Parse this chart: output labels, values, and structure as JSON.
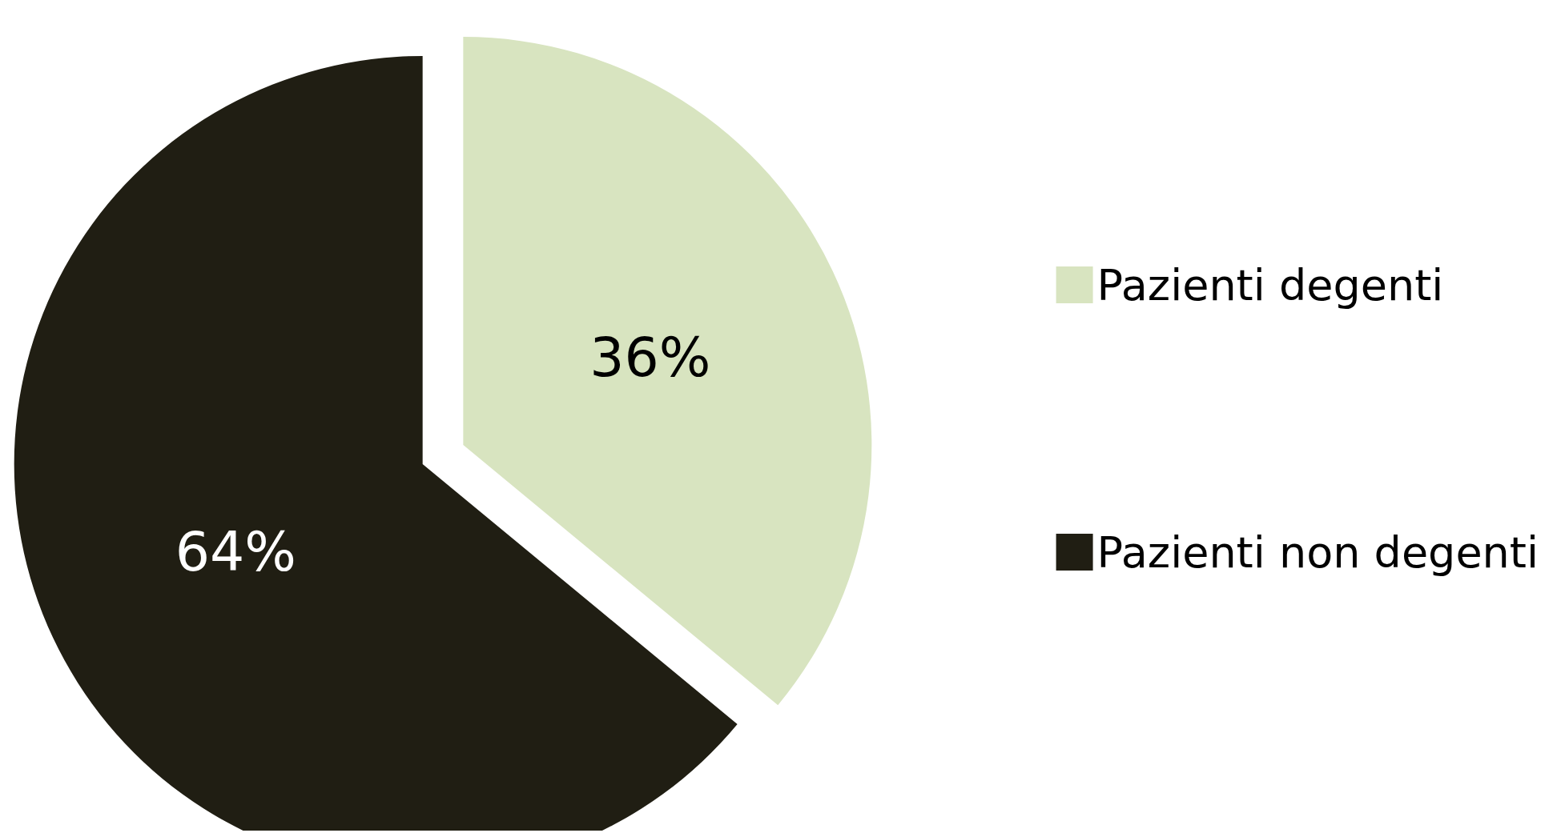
{
  "chart_data": {
    "type": "pie",
    "categories": [
      "Pazienti degenti",
      "Pazienti non degenti"
    ],
    "values": [
      36,
      64
    ],
    "value_labels": [
      "36%",
      "64%"
    ],
    "colors": [
      "#d8e4c0",
      "#201e13"
    ],
    "legend": "right"
  }
}
